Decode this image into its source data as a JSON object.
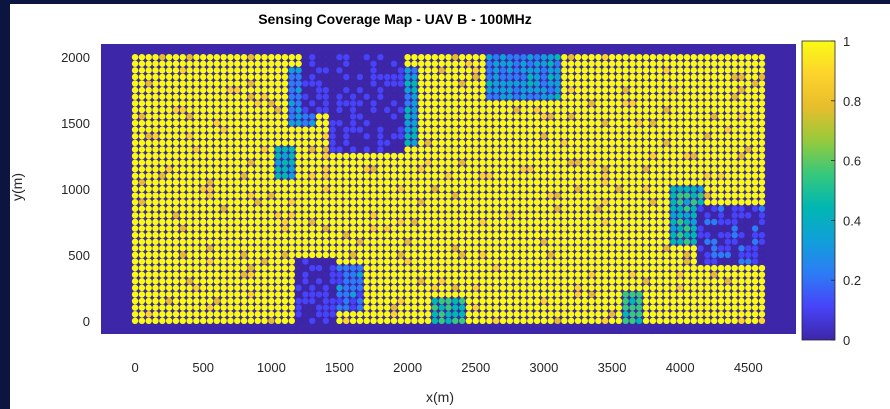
{
  "chart_data": {
    "type": "heatmap",
    "title": "Sensing Coverage Map - UAV B - 100MHz",
    "xlabel": "x(m)",
    "ylabel": "y(m)",
    "xlim": [
      -250,
      4850
    ],
    "ylim": [
      -100,
      2100
    ],
    "xticks": [
      0,
      500,
      1000,
      1500,
      2000,
      2500,
      3000,
      3500,
      4000,
      4500
    ],
    "yticks": [
      0,
      500,
      1000,
      1500,
      2000
    ],
    "colorbar": {
      "range": [
        0,
        1
      ],
      "ticks": [
        0,
        0.2,
        0.4,
        0.6,
        0.8,
        1
      ],
      "colormap": "parula",
      "colors": [
        "#3e26a8",
        "#4743f8",
        "#2d7cf6",
        "#10a0d8",
        "#01b7b2",
        "#37c87c",
        "#96ca3c",
        "#e6bd2c",
        "#fdd32c",
        "#f9fb15"
      ]
    },
    "background_color": "#3e26a8",
    "grid": {
      "x_start": 0,
      "x_end": 4600,
      "x_step": 50,
      "y_start": 0,
      "y_end": 2000,
      "y_step": 50,
      "default_value": 0.98
    },
    "low_coverage_regions": [
      {
        "x": [
          1450,
          1950
        ],
        "y": [
          1300,
          2000
        ],
        "value": 0.03
      },
      {
        "x": [
          1250,
          1450
        ],
        "y": [
          1600,
          2000
        ],
        "value": 0.08
      },
      {
        "x": [
          1150,
          1300
        ],
        "y": [
          1500,
          1900
        ],
        "value": 0.25
      },
      {
        "x": [
          1950,
          2050
        ],
        "y": [
          1350,
          1900
        ],
        "value": 0.35
      },
      {
        "x": [
          1200,
          1450
        ],
        "y": [
          0,
          450
        ],
        "value": 0.08
      },
      {
        "x": [
          1450,
          1650
        ],
        "y": [
          100,
          400
        ],
        "value": 0.2
      },
      {
        "x": [
          2600,
          3100
        ],
        "y": [
          1700,
          2000
        ],
        "value": 0.3
      },
      {
        "x": [
          4150,
          4600
        ],
        "y": [
          450,
          850
        ],
        "value": 0.1
      },
      {
        "x": [
          3950,
          4150
        ],
        "y": [
          600,
          1000
        ],
        "value": 0.45
      },
      {
        "x": [
          2200,
          2400
        ],
        "y": [
          0,
          150
        ],
        "value": 0.5
      },
      {
        "x": [
          1050,
          1150
        ],
        "y": [
          1100,
          1300
        ],
        "value": 0.4
      },
      {
        "x": [
          3600,
          3700
        ],
        "y": [
          0,
          200
        ],
        "value": 0.55
      }
    ]
  }
}
